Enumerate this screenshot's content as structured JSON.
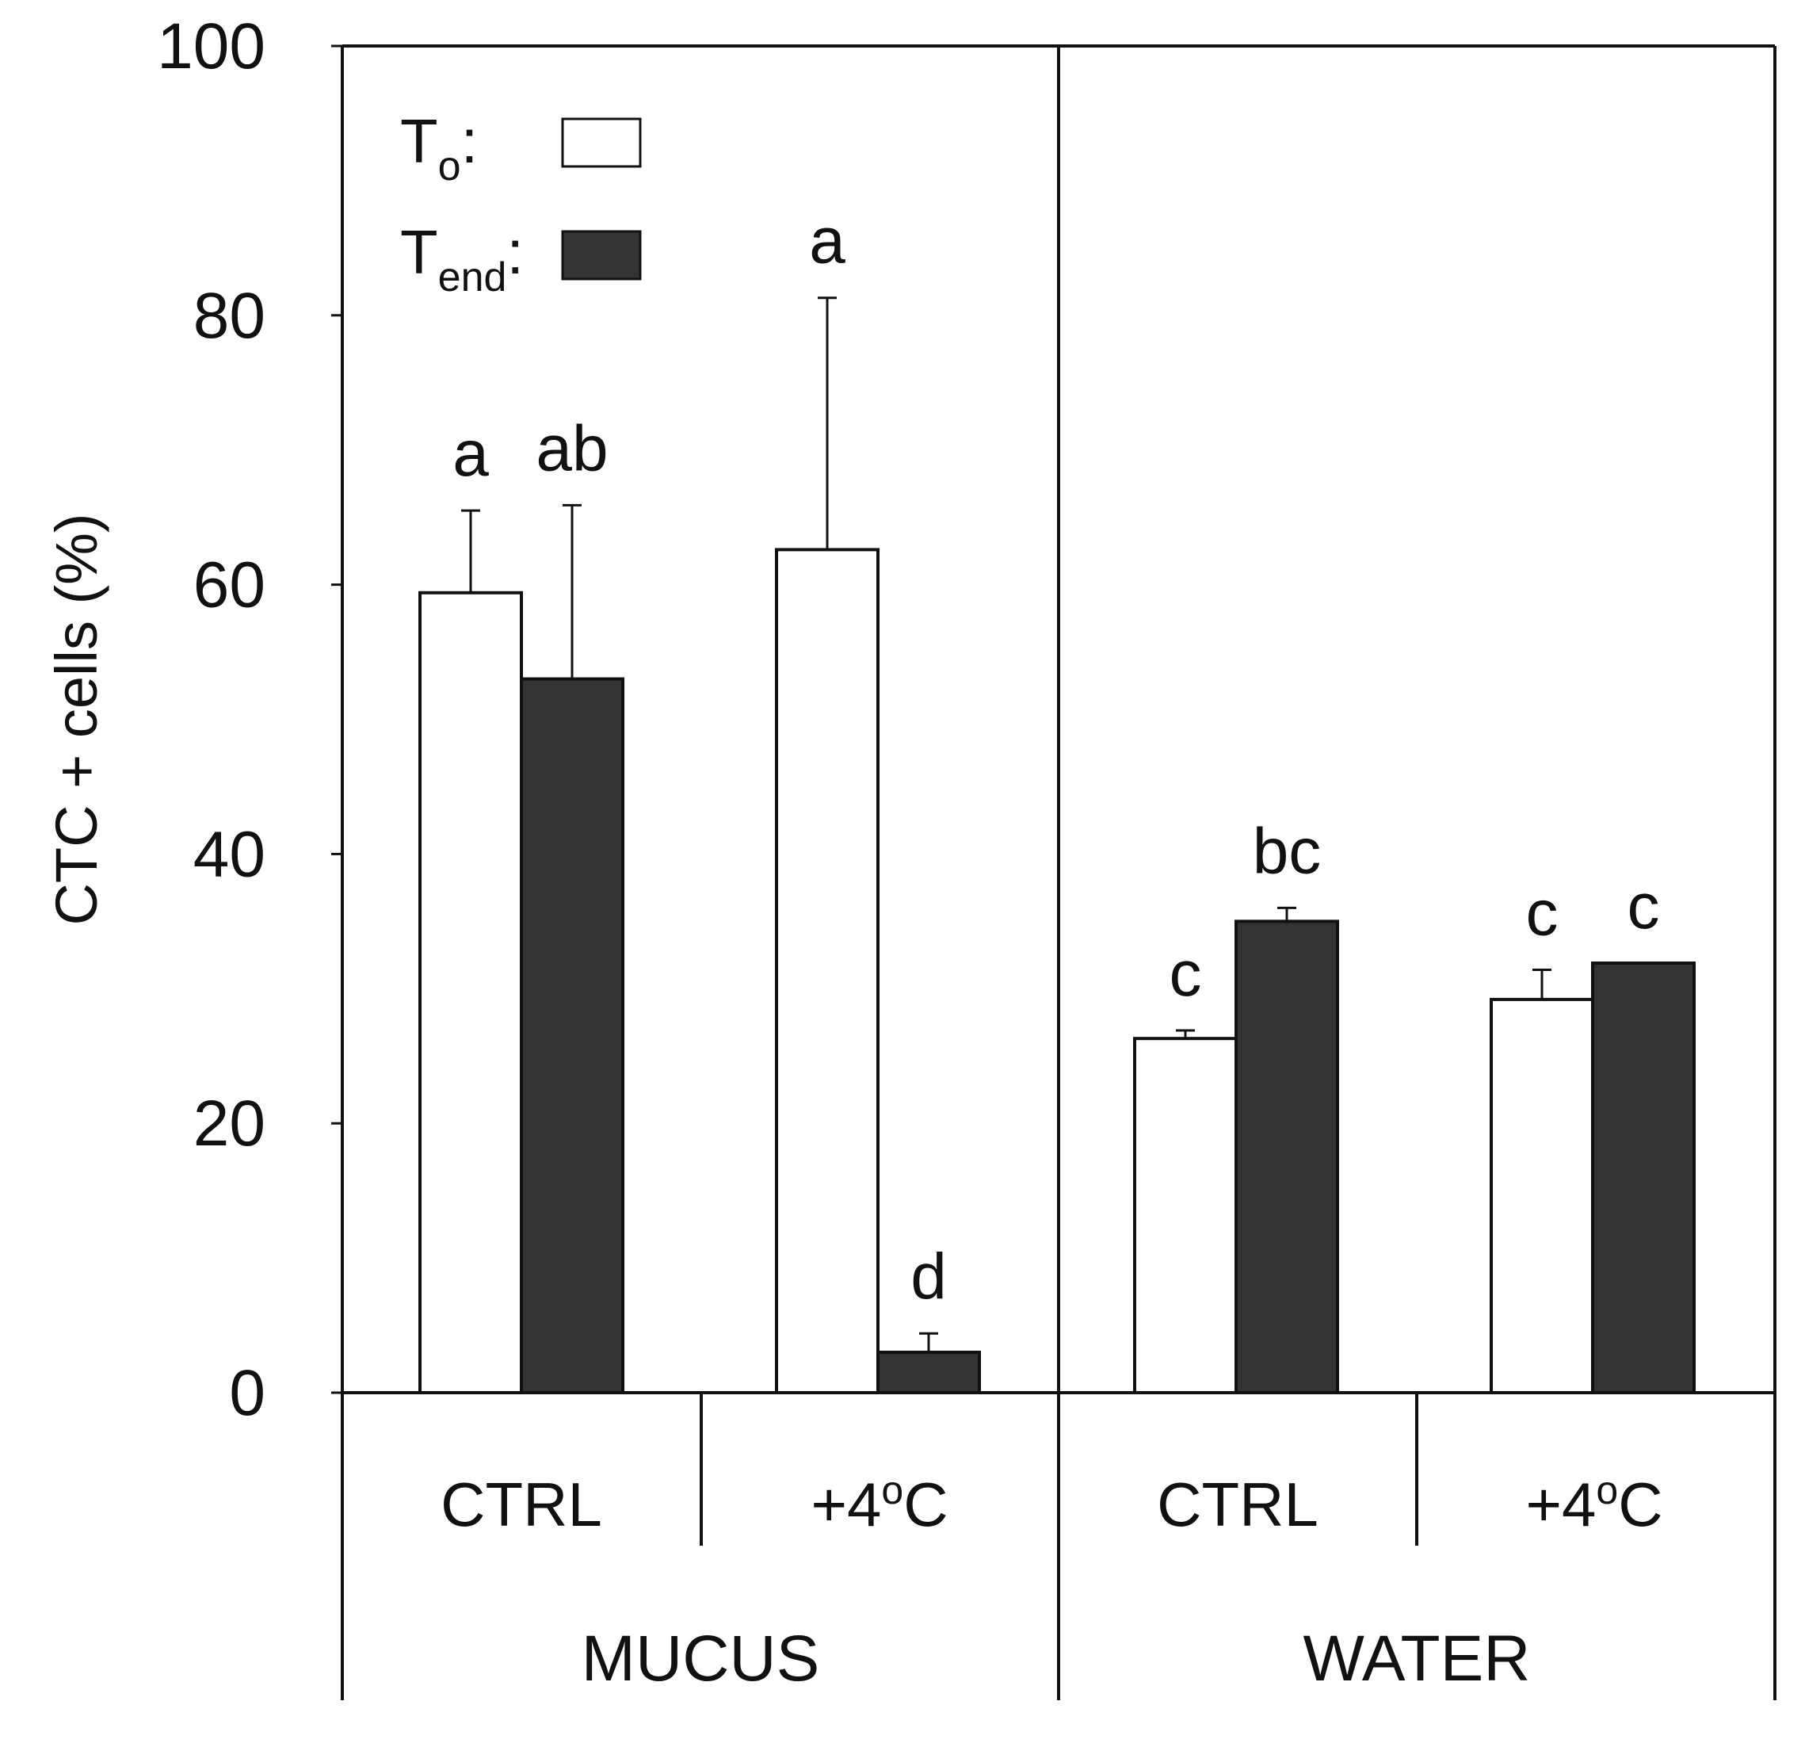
{
  "chart_data": {
    "type": "bar",
    "ylabel": "CTC + cells (%)",
    "xlabel": "",
    "ylim": [
      0,
      100
    ],
    "yticks": [
      "0",
      "20",
      "40",
      "60",
      "80",
      "100"
    ],
    "groups": [
      {
        "label": "MUCUS",
        "subgroups": [
          {
            "label": "CTRL",
            "superscript": ""
          },
          {
            "label": "+4",
            "superscript": "o",
            "suffix": "C"
          }
        ]
      },
      {
        "label": "WATER",
        "subgroups": [
          {
            "label": "CTRL",
            "superscript": ""
          },
          {
            "label": "+4",
            "superscript": "o",
            "suffix": "C"
          }
        ]
      }
    ],
    "categories": [
      "MUCUS CTRL",
      "MUCUS +4oC",
      "WATER CTRL",
      "WATER +4oC"
    ],
    "series": [
      {
        "name": "T0",
        "legend_main": "T",
        "legend_sub": "o",
        "color": "#ffffff",
        "values": [
          59.4,
          62.6,
          26.3,
          29.2
        ],
        "errors": [
          6.1,
          18.7,
          0.6,
          2.2
        ],
        "letters": [
          "a",
          "a",
          "c",
          "c"
        ]
      },
      {
        "name": "Tend",
        "legend_main": "T",
        "legend_sub": "end",
        "color": "#333333",
        "values": [
          53.0,
          3.0,
          35.0,
          31.9
        ],
        "errors": [
          12.9,
          1.4,
          1.0,
          0.0
        ],
        "letters": [
          "ab",
          "d",
          "bc",
          "c"
        ]
      }
    ]
  }
}
